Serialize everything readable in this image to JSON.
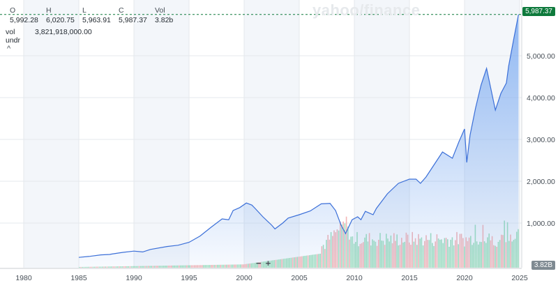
{
  "brand": "yahoo/finance",
  "ohlc": [
    {
      "label": "O",
      "value": "5,992.28"
    },
    {
      "label": "H",
      "value": "6,020.75"
    },
    {
      "label": "L",
      "value": "5,963.91"
    },
    {
      "label": "C",
      "value": "5,987.37"
    },
    {
      "label": "Vol",
      "value": "3.82b"
    }
  ],
  "info": {
    "vol_key": "vol",
    "vol_value": "3,821,918,000.00",
    "undr_key": "undr"
  },
  "collapse_glyph": "^",
  "zoom": {
    "minus": "−",
    "plus": "+"
  },
  "last_price_tag": "5,987.37",
  "volume_tag": "3.82B",
  "colors": {
    "line": "#3b6fd8",
    "area": "#6fa3f0",
    "vol_up": "#8fd9b2",
    "vol_down": "#f2a8a8",
    "shade": "#f3f6fa",
    "tag_green": "#0e7a3c"
  },
  "chart_data": {
    "type": "area",
    "xlabel": "",
    "ylabel": "",
    "x_ticks": [
      "1980",
      "1985",
      "1990",
      "1995",
      "2000",
      "2005",
      "2010",
      "2015",
      "2020",
      "2025"
    ],
    "y_ticks": [
      "1,000.00",
      "2,000.00",
      "3,000.00",
      "4,000.00",
      "5,000.00"
    ],
    "y_tick_values": [
      1000,
      2000,
      3000,
      4000,
      5000
    ],
    "xlim": [
      1980,
      2025
    ],
    "ylim": [
      0,
      6000
    ],
    "last_close": 5987.37,
    "series": [
      {
        "x": [
          1985.0,
          1986.0,
          1987.0,
          1987.8,
          1988.0,
          1989.0,
          1990.0,
          1990.8,
          1991.5,
          1993.0,
          1994.0,
          1995.0,
          1996.0,
          1997.0,
          1998.0,
          1998.6,
          1999.0,
          1999.6,
          2000.2,
          2000.7,
          2001.0,
          2001.7,
          2002.5,
          2002.8,
          2003.5,
          2004.0,
          2005.0,
          2006.0,
          2007.0,
          2007.8,
          2008.3,
          2008.8,
          2009.2,
          2009.8,
          2010.3,
          2010.6,
          2011.0,
          2011.7,
          2012.0,
          2013.0,
          2014.0,
          2015.0,
          2015.6,
          2016.0,
          2016.5,
          2017.0,
          2018.0,
          2018.9,
          2019.5,
          2020.0,
          2020.2,
          2020.5,
          2021.0,
          2021.5,
          2022.0,
          2022.8,
          2023.3,
          2023.8,
          2024.0,
          2024.5,
          2024.9
        ],
        "values": [
          180,
          205,
          240,
          250,
          260,
          300,
          330,
          310,
          370,
          440,
          470,
          540,
          690,
          900,
          1100,
          1080,
          1300,
          1370,
          1480,
          1430,
          1350,
          1150,
          950,
          860,
          1000,
          1120,
          1200,
          1290,
          1460,
          1470,
          1300,
          950,
          750,
          1080,
          1150,
          1080,
          1280,
          1200,
          1350,
          1700,
          1950,
          2050,
          2050,
          1950,
          2100,
          2300,
          2700,
          2550,
          2950,
          3250,
          2450,
          3100,
          3750,
          4300,
          4700,
          3700,
          4100,
          4350,
          4750,
          5450,
          5987
        ]
      }
    ]
  }
}
